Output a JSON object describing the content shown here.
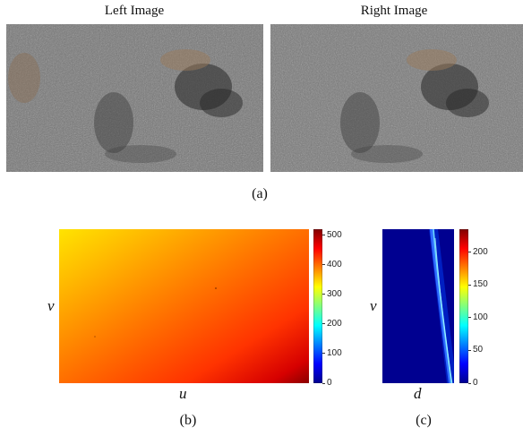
{
  "figure": {
    "left_title": "Left Image",
    "right_title": "Right Image",
    "captions": [
      "(a)",
      "(b)",
      "(c)"
    ]
  },
  "colors": {
    "background": "#ffffff",
    "asphalt": "#6f6f6f",
    "depth_top_left": "#ffe000",
    "depth_bottom_right": "#8b0000",
    "vdisp_background": "#00008b"
  },
  "chart_data": [
    {
      "type": "heatmap",
      "id": "b",
      "xlabel": "u",
      "ylabel": "v",
      "colorbar": {
        "ticks": [
          0,
          100,
          200,
          300,
          400,
          500
        ],
        "range": [
          0,
          520
        ],
        "colormap": "jet"
      },
      "approx_values": {
        "top_left": 340,
        "center": 430,
        "bottom_right": 520
      }
    },
    {
      "type": "heatmap",
      "id": "c",
      "xlabel": "d",
      "ylabel": "v",
      "colorbar": {
        "ticks": [
          0,
          50,
          100,
          150,
          200
        ],
        "range": [
          0,
          235
        ],
        "colormap": "jet"
      }
    }
  ]
}
